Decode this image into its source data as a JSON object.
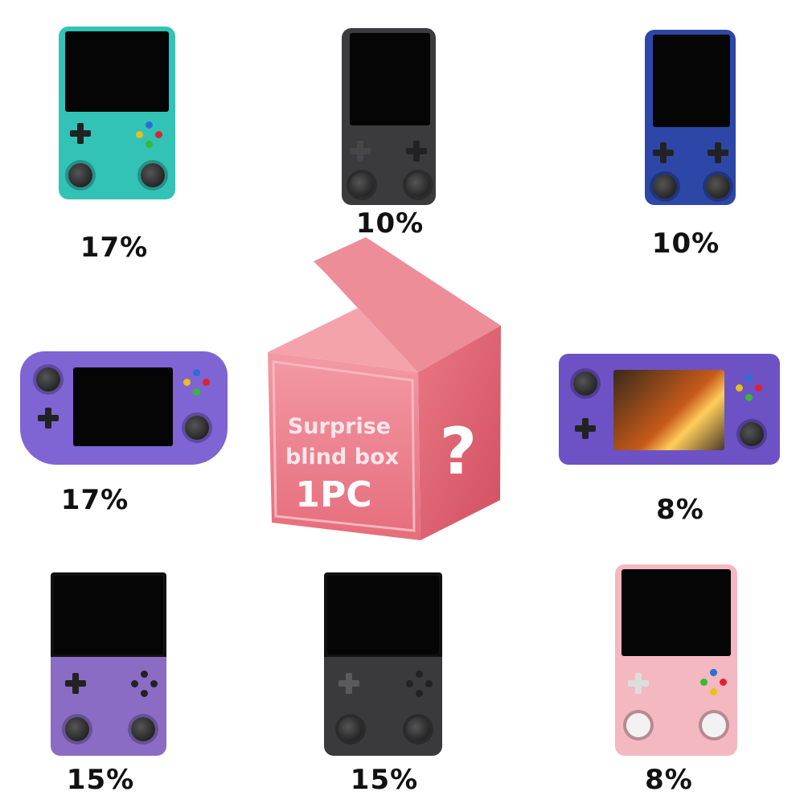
{
  "center_box": {
    "line1": "Surprise",
    "line2": "blind box",
    "quantity": "1PC",
    "mark": "?",
    "color": "#e8727f"
  },
  "items": [
    {
      "name": "teal transparent vertical handheld",
      "percent": "17%",
      "color": "#2fb9b0"
    },
    {
      "name": "black vertical handheld",
      "percent": "10%",
      "color": "#3b3b3d"
    },
    {
      "name": "blue transparent vertical handheld",
      "percent": "10%",
      "color": "#2d47a8"
    },
    {
      "name": "purple horizontal handheld with grips",
      "percent": "17%",
      "color": "#7b5fd0"
    },
    {
      "name": "purple horizontal handheld",
      "percent": "8%",
      "color": "#6a4fc4"
    },
    {
      "name": "purple transparent vertical handheld",
      "percent": "15%",
      "color": "#8a6cc4"
    },
    {
      "name": "black transparent vertical handheld",
      "percent": "15%",
      "color": "#2e2e30"
    },
    {
      "name": "pink vertical handheld",
      "percent": "8%",
      "color": "#f3b5bd"
    }
  ]
}
